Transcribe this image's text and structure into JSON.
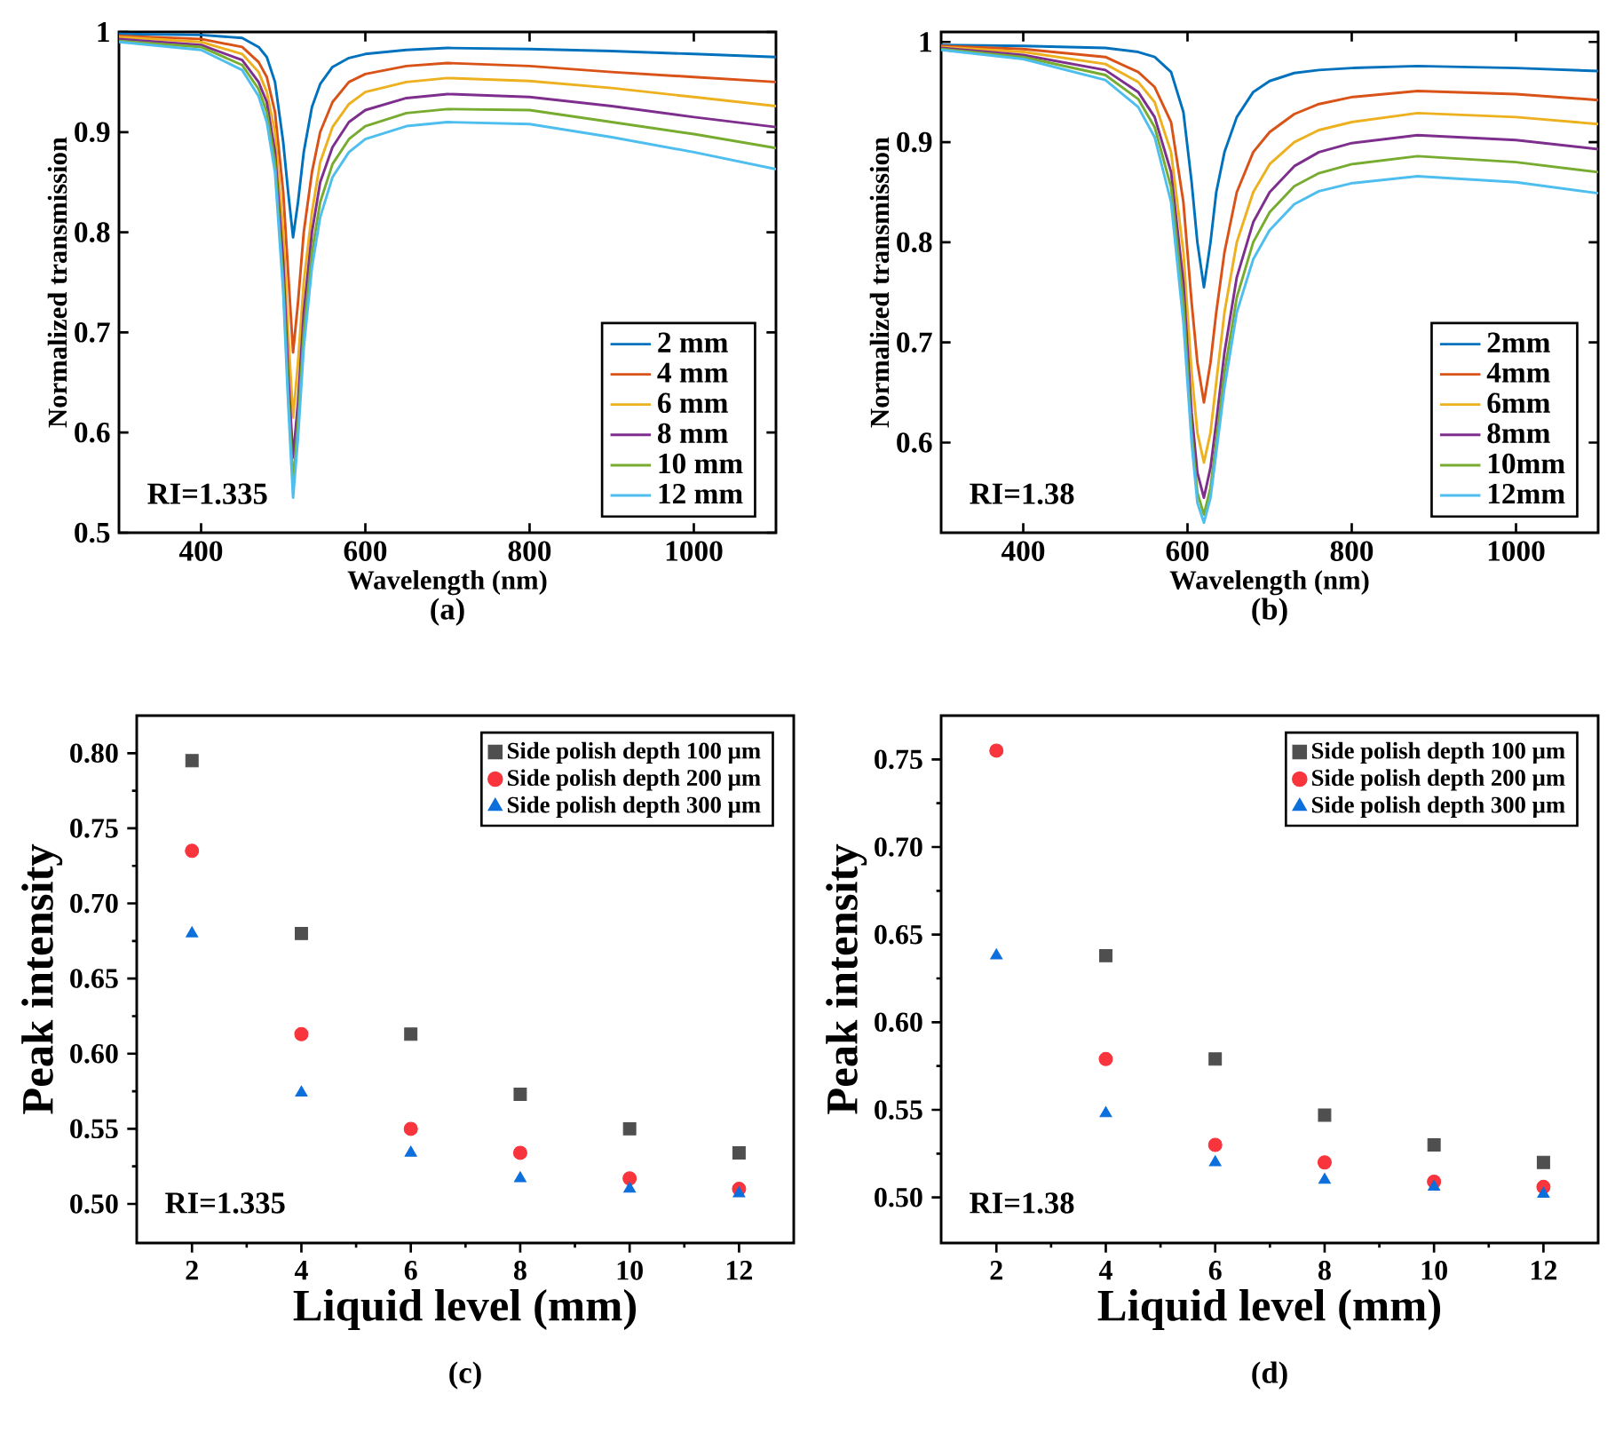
{
  "chart_data": [
    {
      "type": "line",
      "title": "(a)",
      "xlabel": "Wavelength (nm)",
      "ylabel": "Normalized transmission",
      "annotations": [
        "RI=1.335"
      ],
      "legend": "bottom right",
      "xlim": [
        300,
        1100
      ],
      "ylim": [
        0.5,
        1.0
      ],
      "xticks": [
        400,
        600,
        800,
        1000
      ],
      "yticks": [
        0.5,
        0.6,
        0.7,
        0.8,
        0.9,
        1
      ],
      "x": [
        300,
        400,
        450,
        470,
        480,
        490,
        500,
        506,
        512,
        518,
        525,
        535,
        545,
        560,
        580,
        600,
        650,
        700,
        800,
        900,
        1000,
        1100
      ],
      "series": [
        {
          "name": "2 mm",
          "color": "#0072bd",
          "values": [
            0.998,
            0.997,
            0.994,
            0.985,
            0.975,
            0.95,
            0.89,
            0.84,
            0.795,
            0.83,
            0.88,
            0.925,
            0.948,
            0.965,
            0.974,
            0.978,
            0.982,
            0.984,
            0.983,
            0.981,
            0.978,
            0.975
          ]
        },
        {
          "name": "4 mm",
          "color": "#d95319",
          "values": [
            0.996,
            0.993,
            0.985,
            0.97,
            0.955,
            0.92,
            0.84,
            0.76,
            0.68,
            0.73,
            0.8,
            0.86,
            0.9,
            0.93,
            0.95,
            0.958,
            0.966,
            0.969,
            0.966,
            0.96,
            0.955,
            0.95
          ]
        },
        {
          "name": "6 mm",
          "color": "#edb120",
          "values": [
            0.995,
            0.99,
            0.978,
            0.96,
            0.94,
            0.9,
            0.8,
            0.7,
            0.615,
            0.67,
            0.75,
            0.82,
            0.87,
            0.905,
            0.928,
            0.94,
            0.95,
            0.954,
            0.951,
            0.944,
            0.935,
            0.926
          ]
        },
        {
          "name": "8 mm",
          "color": "#7e2f8e",
          "values": [
            0.993,
            0.987,
            0.972,
            0.95,
            0.93,
            0.88,
            0.77,
            0.66,
            0.575,
            0.63,
            0.72,
            0.8,
            0.85,
            0.885,
            0.91,
            0.922,
            0.934,
            0.938,
            0.935,
            0.926,
            0.915,
            0.905
          ]
        },
        {
          "name": "10 mm",
          "color": "#77ac30",
          "values": [
            0.991,
            0.985,
            0.967,
            0.943,
            0.92,
            0.87,
            0.75,
            0.64,
            0.55,
            0.61,
            0.7,
            0.78,
            0.83,
            0.868,
            0.893,
            0.906,
            0.919,
            0.923,
            0.922,
            0.91,
            0.898,
            0.884
          ]
        },
        {
          "name": "12 mm",
          "color": "#4dbeee",
          "values": [
            0.99,
            0.982,
            0.962,
            0.936,
            0.91,
            0.86,
            0.74,
            0.63,
            0.535,
            0.595,
            0.685,
            0.765,
            0.815,
            0.855,
            0.88,
            0.893,
            0.906,
            0.91,
            0.908,
            0.895,
            0.88,
            0.863
          ]
        }
      ]
    },
    {
      "type": "line",
      "title": "(b)",
      "xlabel": "Wavelength (nm)",
      "ylabel": "Normalized transmission",
      "annotations": [
        "RI=1.38"
      ],
      "legend": "bottom right",
      "xlim": [
        300,
        1100
      ],
      "ylim": [
        0.51,
        1.01
      ],
      "xticks": [
        400,
        600,
        800,
        1000
      ],
      "yticks": [
        0.6,
        0.7,
        0.8,
        0.9,
        1
      ],
      "x": [
        300,
        400,
        500,
        540,
        560,
        580,
        595,
        605,
        612,
        620,
        628,
        635,
        645,
        660,
        680,
        700,
        730,
        760,
        800,
        880,
        1000,
        1100
      ],
      "series": [
        {
          "name": "2mm",
          "color": "#0072bd",
          "values": [
            0.997,
            0.996,
            0.994,
            0.99,
            0.985,
            0.97,
            0.93,
            0.86,
            0.8,
            0.755,
            0.8,
            0.85,
            0.89,
            0.925,
            0.95,
            0.961,
            0.969,
            0.972,
            0.974,
            0.976,
            0.974,
            0.971
          ]
        },
        {
          "name": "4mm",
          "color": "#d95319",
          "values": [
            0.996,
            0.993,
            0.985,
            0.97,
            0.955,
            0.92,
            0.84,
            0.74,
            0.68,
            0.64,
            0.68,
            0.73,
            0.79,
            0.85,
            0.89,
            0.91,
            0.928,
            0.938,
            0.945,
            0.951,
            0.948,
            0.942
          ]
        },
        {
          "name": "6mm",
          "color": "#edb120",
          "values": [
            0.995,
            0.99,
            0.978,
            0.96,
            0.94,
            0.89,
            0.79,
            0.67,
            0.61,
            0.58,
            0.61,
            0.66,
            0.73,
            0.8,
            0.85,
            0.878,
            0.9,
            0.912,
            0.92,
            0.929,
            0.925,
            0.918
          ]
        },
        {
          "name": "8mm",
          "color": "#7e2f8e",
          "values": [
            0.994,
            0.987,
            0.972,
            0.95,
            0.925,
            0.87,
            0.76,
            0.63,
            0.57,
            0.545,
            0.575,
            0.62,
            0.69,
            0.765,
            0.82,
            0.85,
            0.876,
            0.89,
            0.899,
            0.907,
            0.902,
            0.893
          ]
        },
        {
          "name": "10mm",
          "color": "#77ac30",
          "values": [
            0.993,
            0.985,
            0.967,
            0.943,
            0.915,
            0.855,
            0.74,
            0.61,
            0.55,
            0.528,
            0.555,
            0.6,
            0.67,
            0.745,
            0.8,
            0.83,
            0.856,
            0.869,
            0.878,
            0.886,
            0.88,
            0.87
          ]
        },
        {
          "name": "12mm",
          "color": "#4dbeee",
          "values": [
            0.992,
            0.983,
            0.962,
            0.935,
            0.905,
            0.84,
            0.72,
            0.6,
            0.54,
            0.52,
            0.545,
            0.59,
            0.655,
            0.73,
            0.783,
            0.812,
            0.838,
            0.851,
            0.859,
            0.866,
            0.86,
            0.849
          ]
        }
      ]
    },
    {
      "type": "scatter",
      "title": "(c)",
      "xlabel": "Liquid level (mm)",
      "ylabel": "Peak intensity",
      "annotations": [
        "RI=1.335"
      ],
      "legend": "top right",
      "xlim": [
        0.99,
        13
      ],
      "ylim": [
        0.474,
        0.825
      ],
      "xticks": [
        2,
        4,
        6,
        8,
        10,
        12
      ],
      "yticks": [
        {
          "value": 0.5,
          "label": "0.50"
        },
        {
          "value": 0.55,
          "label": "0.55"
        },
        {
          "value": 0.6,
          "label": "0.60"
        },
        {
          "value": 0.65,
          "label": "0.65"
        },
        {
          "value": 0.7,
          "label": "0.70"
        },
        {
          "value": 0.75,
          "label": "0.75"
        },
        {
          "value": 0.8,
          "label": "0.80"
        }
      ],
      "x": [
        2,
        4,
        6,
        8,
        10,
        12
      ],
      "series": [
        {
          "name": "Side polish depth 100 µm",
          "color": "#4f4f4f",
          "marker": "square",
          "values": [
            0.795,
            0.68,
            0.613,
            0.573,
            0.55,
            0.534
          ]
        },
        {
          "name": "Side polish depth 200 µm",
          "color": "#f8343d",
          "marker": "circle",
          "values": [
            0.735,
            0.613,
            0.55,
            0.534,
            0.517,
            0.51
          ]
        },
        {
          "name": "Side polish depth 300 µm",
          "color": "#0c6fdc",
          "marker": "triangle",
          "values": [
            0.68,
            0.574,
            0.534,
            0.517,
            0.51,
            0.507
          ]
        }
      ]
    },
    {
      "type": "scatter",
      "title": "(d)",
      "xlabel": "Liquid level (mm)",
      "ylabel": "Peak intensity",
      "annotations": [
        "RI=1.38"
      ],
      "legend": "top right",
      "xlim": [
        0.99,
        13
      ],
      "ylim": [
        0.474,
        0.775
      ],
      "xticks": [
        2,
        4,
        6,
        8,
        10,
        12
      ],
      "yticks": [
        {
          "value": 0.5,
          "label": "0.50"
        },
        {
          "value": 0.55,
          "label": "0.55"
        },
        {
          "value": 0.6,
          "label": "0.60"
        },
        {
          "value": 0.65,
          "label": "0.65"
        },
        {
          "value": 0.7,
          "label": "0.70"
        },
        {
          "value": 0.75,
          "label": "0.75"
        }
      ],
      "x": [
        2,
        4,
        6,
        8,
        10,
        12
      ],
      "series": [
        {
          "name": "Side polish depth 100 µm",
          "color": "#4f4f4f",
          "marker": "square",
          "values": [
            null,
            0.638,
            0.579,
            0.547,
            0.53,
            0.52
          ]
        },
        {
          "name": "Side polish depth 200 µm",
          "color": "#f8343d",
          "marker": "circle",
          "values": [
            0.755,
            0.579,
            0.53,
            0.52,
            0.509,
            0.506
          ]
        },
        {
          "name": "Side polish depth 300 µm",
          "color": "#0c6fdc",
          "marker": "triangle",
          "values": [
            0.638,
            0.548,
            0.52,
            0.51,
            0.506,
            0.502
          ]
        }
      ]
    }
  ]
}
